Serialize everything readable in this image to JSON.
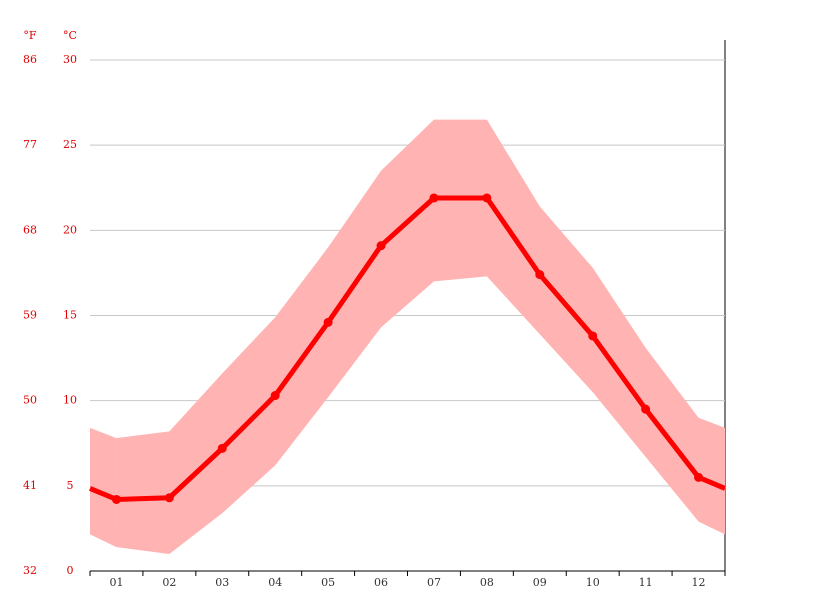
{
  "chart_data": {
    "type": "line",
    "categories": [
      "01",
      "02",
      "03",
      "04",
      "05",
      "06",
      "07",
      "08",
      "09",
      "10",
      "11",
      "12"
    ],
    "series": [
      {
        "color": "#ff0000",
        "values": [
          4.2,
          4.3,
          7.2,
          10.3,
          14.6,
          19.1,
          21.9,
          21.9,
          17.4,
          13.8,
          9.5,
          5.5
        ]
      }
    ],
    "range": {
      "color": "#ffb3b3",
      "high": [
        7.8,
        8.2,
        11.6,
        14.9,
        19.0,
        23.5,
        26.5,
        26.5,
        21.4,
        17.8,
        13.1,
        9.0
      ],
      "low": [
        1.4,
        1.0,
        3.4,
        6.2,
        10.2,
        14.3,
        17.0,
        17.3,
        13.9,
        10.5,
        6.7,
        2.9
      ]
    },
    "y_unit": "°C",
    "y2_unit": "°F",
    "ylim": [
      0,
      30
    ],
    "yticks": [
      0,
      5,
      10,
      15,
      20,
      25,
      30
    ],
    "y2lim": [
      32,
      86
    ],
    "y2ticks": [
      32,
      41,
      50,
      59,
      68,
      77,
      86
    ],
    "grid": true,
    "tick_color": "#e00000"
  }
}
